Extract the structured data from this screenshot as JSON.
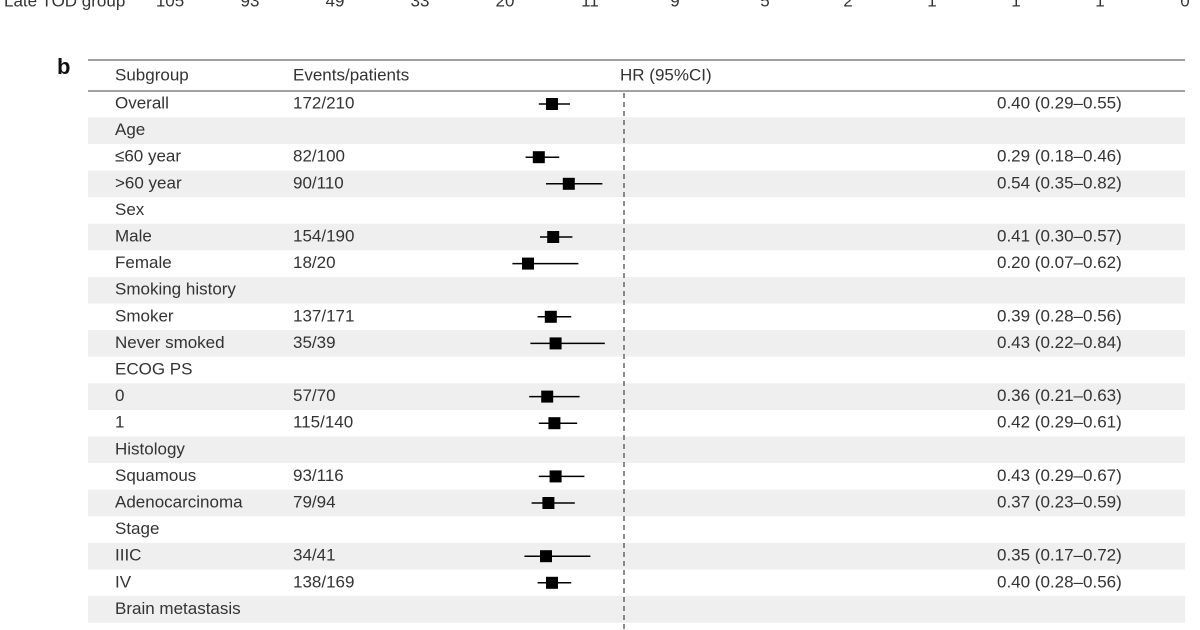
{
  "panel_label": "b",
  "risk_table": {
    "label": "Late TOD group",
    "counts": [
      105,
      93,
      49,
      33,
      20,
      11,
      9,
      5,
      2,
      1,
      1,
      1,
      0
    ]
  },
  "chart_data": {
    "type": "forest",
    "headers": {
      "subgroup": "Subgroup",
      "events": "Events/patients",
      "hr": "HR (95%CI)"
    },
    "categories": [
      "Overall",
      "Age",
      "≤60 year",
      ">60 year",
      "Sex",
      "Male",
      "Female",
      "Smoking history",
      "Smoker",
      "Never smoked",
      "ECOG PS",
      "0",
      "1",
      "Histology",
      "Squamous",
      "Adenocarcinoma",
      "Stage",
      "IIIC",
      "IV",
      "Brain metastasis"
    ],
    "events": [
      "172/210",
      null,
      "82/100",
      "90/110",
      null,
      "154/190",
      "18/20",
      null,
      "137/171",
      "35/39",
      null,
      "57/70",
      "115/140",
      null,
      "93/116",
      "79/94",
      null,
      "34/41",
      "138/169",
      null
    ],
    "values": [
      0.4,
      null,
      0.29,
      0.54,
      null,
      0.41,
      0.2,
      null,
      0.39,
      0.43,
      null,
      0.36,
      0.42,
      null,
      0.43,
      0.37,
      null,
      0.35,
      0.4,
      null
    ],
    "lower": [
      0.29,
      null,
      0.18,
      0.35,
      null,
      0.3,
      0.07,
      null,
      0.28,
      0.22,
      null,
      0.21,
      0.29,
      null,
      0.29,
      0.23,
      null,
      0.17,
      0.28,
      null
    ],
    "upper": [
      0.55,
      null,
      0.46,
      0.82,
      null,
      0.57,
      0.62,
      null,
      0.56,
      0.84,
      null,
      0.63,
      0.61,
      null,
      0.67,
      0.59,
      null,
      0.72,
      0.56,
      null
    ],
    "value_labels": [
      "0.40 (0.29–0.55)",
      null,
      "0.29 (0.18–0.46)",
      "0.54 (0.35–0.82)",
      null,
      "0.41 (0.30–0.57)",
      "0.20 (0.07–0.62)",
      null,
      "0.39 (0.28–0.56)",
      "0.43 (0.22–0.84)",
      null,
      "0.36 (0.21–0.63)",
      "0.42 (0.29–0.61)",
      null,
      "0.43 (0.29–0.67)",
      "0.37 (0.23–0.59)",
      null,
      "0.35 (0.17–0.72)",
      "0.40 (0.28–0.56)",
      null
    ],
    "xlim": [
      0,
      1
    ],
    "reference_line": 1,
    "color": "#000000",
    "stripe_color": "#efefef"
  }
}
